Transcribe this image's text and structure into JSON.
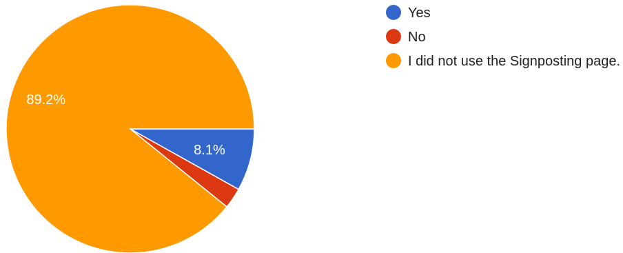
{
  "chart_data": {
    "type": "pie",
    "slices": [
      {
        "label": "Yes",
        "value": 8.1,
        "color": "#3366cc",
        "display": "8.1%"
      },
      {
        "label": "No",
        "value": 2.7,
        "color": "#dc3912",
        "display": ""
      },
      {
        "label": "I did not use the Signposting page.",
        "value": 89.2,
        "color": "#ff9900",
        "display": "89.2%"
      }
    ],
    "legend_position": "right"
  }
}
